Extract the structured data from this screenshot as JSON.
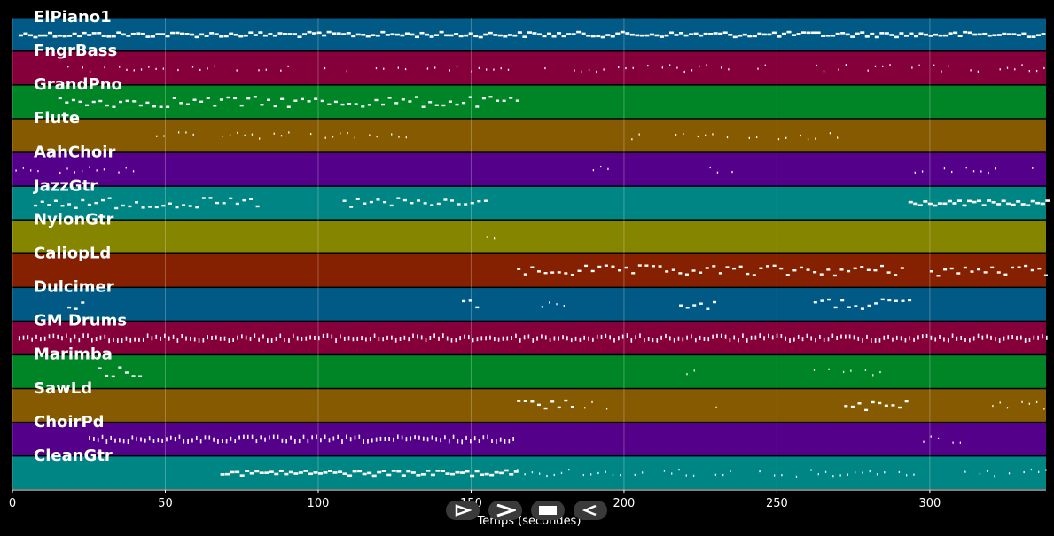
{
  "chart_data": {
    "type": "piano-roll",
    "xlabel": "Temps (secondes)",
    "xlim": [
      0,
      338
    ],
    "xticks": [
      0,
      50,
      100,
      150,
      200,
      250,
      300
    ],
    "grid": true,
    "tracks": [
      {
        "name": "ElPiano1",
        "color": "#005a85",
        "activity": [
          [
            2,
            338,
            "dense"
          ]
        ]
      },
      {
        "name": "FngrBass",
        "color": "#85003a",
        "activity": [
          [
            18,
            338,
            "sparse-small"
          ]
        ]
      },
      {
        "name": "GrandPno",
        "color": "#008526",
        "activity": [
          [
            15,
            165,
            "medium"
          ]
        ]
      },
      {
        "name": "Flute",
        "color": "#855a00",
        "activity": [
          [
            47,
            130,
            "sparse-small"
          ],
          [
            200,
            270,
            "sparse-small"
          ]
        ]
      },
      {
        "name": "AahChoir",
        "color": "#55008a",
        "activity": [
          [
            1,
            40,
            "sparse-small"
          ],
          [
            185,
            195,
            "sparse-small"
          ],
          [
            228,
            238,
            "sparse-small"
          ],
          [
            295,
            335,
            "sparse-small"
          ]
        ]
      },
      {
        "name": "JazzGtr",
        "color": "#008585",
        "activity": [
          [
            7,
            80,
            "medium"
          ],
          [
            108,
            155,
            "medium"
          ],
          [
            293,
            338,
            "dense"
          ]
        ]
      },
      {
        "name": "NylonGtr",
        "color": "#858500",
        "activity": [
          [
            155,
            164,
            "sparse-small"
          ]
        ]
      },
      {
        "name": "CaliopLd",
        "color": "#852100",
        "activity": [
          [
            165,
            292,
            "medium"
          ],
          [
            300,
            338,
            "medium"
          ]
        ]
      },
      {
        "name": "Dulcimer",
        "color": "#005a85",
        "activity": [
          [
            18,
            23,
            "medium"
          ],
          [
            147,
            152,
            "medium"
          ],
          [
            173,
            185,
            "sparse-small"
          ],
          [
            218,
            230,
            "medium"
          ],
          [
            262,
            293,
            "medium"
          ]
        ]
      },
      {
        "name": "GM Drums",
        "color": "#85003a",
        "activity": [
          [
            2,
            338,
            "dense-tall"
          ]
        ]
      },
      {
        "name": "Marimba",
        "color": "#008526",
        "activity": [
          [
            28,
            43,
            "medium"
          ],
          [
            218,
            228,
            "sparse-small"
          ],
          [
            262,
            290,
            "sparse-small"
          ]
        ]
      },
      {
        "name": "SawLd",
        "color": "#855a00",
        "activity": [
          [
            165,
            183,
            "medium"
          ],
          [
            187,
            196,
            "sparse-small"
          ],
          [
            230,
            238,
            "sparse-small"
          ],
          [
            272,
            292,
            "medium"
          ],
          [
            318,
            338,
            "sparse-small"
          ]
        ]
      },
      {
        "name": "ChoirPd",
        "color": "#55008a",
        "activity": [
          [
            25,
            165,
            "dense-tall"
          ],
          [
            293,
            310,
            "sparse-small"
          ]
        ]
      },
      {
        "name": "CleanGtr",
        "color": "#008585",
        "activity": [
          [
            68,
            165,
            "dense"
          ],
          [
            165,
            338,
            "sparse-small"
          ]
        ]
      }
    ]
  },
  "controls": [
    {
      "name": "play-outline-icon"
    },
    {
      "name": "forward-icon"
    },
    {
      "name": "stop-icon"
    },
    {
      "name": "back-icon"
    }
  ]
}
